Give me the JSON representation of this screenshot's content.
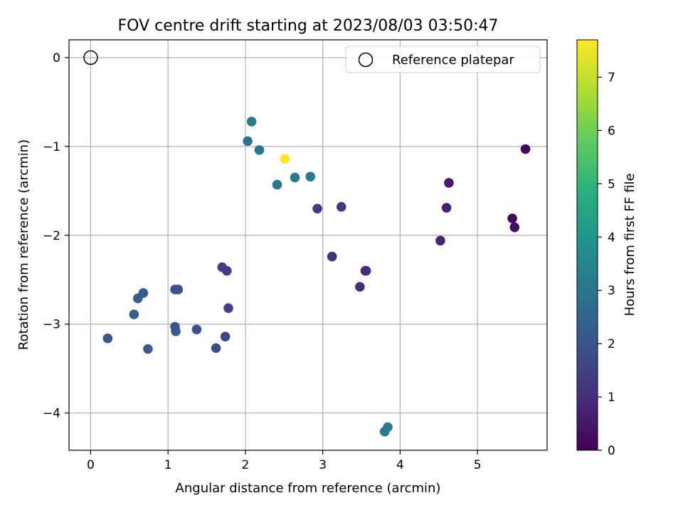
{
  "chart_data": {
    "type": "scatter",
    "title": "FOV centre drift starting at 2023/08/03 03:50:47",
    "xlabel": "Angular distance from reference (arcmin)",
    "ylabel": "Rotation from reference (arcmin)",
    "colorbar_label": "Hours from first FF file",
    "colormap": "viridis",
    "xlim": [
      -0.28,
      5.9
    ],
    "ylim": [
      -4.42,
      0.2
    ],
    "clim": [
      0,
      7.7
    ],
    "x_ticks": [
      0,
      1,
      2,
      3,
      4,
      5
    ],
    "y_ticks": [
      0,
      -1,
      -2,
      -3,
      -4
    ],
    "colorbar_ticks": [
      0,
      1,
      2,
      3,
      4,
      5,
      6,
      7
    ],
    "grid": true,
    "legend": {
      "placement": "top-right",
      "label": "Reference platepar"
    },
    "reference": {
      "x": 0,
      "y": 0
    },
    "points": [
      {
        "x": 5.62,
        "y": -1.03,
        "t": 0.1
      },
      {
        "x": 5.45,
        "y": -1.81,
        "t": 0.2
      },
      {
        "x": 5.48,
        "y": -1.91,
        "t": 0.3
      },
      {
        "x": 4.63,
        "y": -1.41,
        "t": 0.6
      },
      {
        "x": 4.6,
        "y": -1.69,
        "t": 0.7
      },
      {
        "x": 4.52,
        "y": -2.06,
        "t": 0.8
      },
      {
        "x": 3.56,
        "y": -2.4,
        "t": 0.9
      },
      {
        "x": 3.55,
        "y": -2.4,
        "t": 0.95
      },
      {
        "x": 3.48,
        "y": -2.58,
        "t": 1.0
      },
      {
        "x": 3.12,
        "y": -2.24,
        "t": 1.1
      },
      {
        "x": 3.24,
        "y": -1.68,
        "t": 1.2
      },
      {
        "x": 2.93,
        "y": -1.7,
        "t": 1.3
      },
      {
        "x": 1.76,
        "y": -2.4,
        "t": 1.4
      },
      {
        "x": 1.7,
        "y": -2.36,
        "t": 1.45
      },
      {
        "x": 1.78,
        "y": -2.82,
        "t": 1.5
      },
      {
        "x": 1.74,
        "y": -3.14,
        "t": 1.6
      },
      {
        "x": 1.62,
        "y": -3.27,
        "t": 1.75
      },
      {
        "x": 1.37,
        "y": -3.06,
        "t": 1.9
      },
      {
        "x": 1.13,
        "y": -2.61,
        "t": 2.0
      },
      {
        "x": 1.09,
        "y": -2.61,
        "t": 2.05
      },
      {
        "x": 1.09,
        "y": -3.03,
        "t": 2.1
      },
      {
        "x": 1.1,
        "y": -3.08,
        "t": 2.15
      },
      {
        "x": 0.68,
        "y": -2.65,
        "t": 2.2
      },
      {
        "x": 0.61,
        "y": -2.71,
        "t": 2.25
      },
      {
        "x": 0.56,
        "y": -2.89,
        "t": 2.3
      },
      {
        "x": 0.74,
        "y": -3.28,
        "t": 2.2
      },
      {
        "x": 0.22,
        "y": -3.16,
        "t": 2.1
      },
      {
        "x": 2.03,
        "y": -0.94,
        "t": 2.9
      },
      {
        "x": 2.18,
        "y": -1.04,
        "t": 2.95
      },
      {
        "x": 2.08,
        "y": -0.72,
        "t": 3.1
      },
      {
        "x": 2.41,
        "y": -1.43,
        "t": 3.0
      },
      {
        "x": 2.64,
        "y": -1.35,
        "t": 3.05
      },
      {
        "x": 2.84,
        "y": -1.34,
        "t": 3.1
      },
      {
        "x": 3.8,
        "y": -4.21,
        "t": 3.15
      },
      {
        "x": 3.84,
        "y": -4.16,
        "t": 3.2
      },
      {
        "x": 2.51,
        "y": -1.14,
        "t": 7.7
      }
    ]
  }
}
